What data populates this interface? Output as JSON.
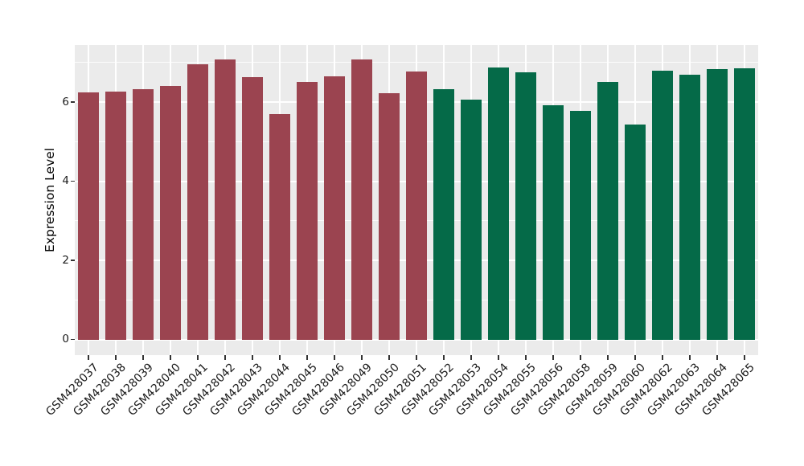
{
  "chart_data": {
    "type": "bar",
    "title": "",
    "xlabel": "",
    "ylabel": "Expression Level",
    "ylim": [
      0,
      7.43
    ],
    "yticks": [
      0,
      2,
      4,
      6
    ],
    "ytick_labels": [
      "0",
      "2",
      "4",
      "6"
    ],
    "minor_gridlines": [
      1,
      3,
      5,
      7
    ],
    "grid": "white major and minor horizontal lines, white vertical line at each category center, on gray panel",
    "legend_position": "none",
    "panel_background": "#EBEBEB",
    "gridline_color": "#FFFFFF",
    "axis_text_color": "#1A1A1A",
    "tick_mark_color": "#333333",
    "group_colors": {
      "maroon": "#9B4450",
      "green": "#056A48"
    },
    "categories": [
      "GSM428037",
      "GSM428038",
      "GSM428039",
      "GSM428040",
      "GSM428041",
      "GSM428042",
      "GSM428043",
      "GSM428044",
      "GSM428045",
      "GSM428046",
      "GSM428049",
      "GSM428050",
      "GSM428051",
      "GSM428052",
      "GSM428053",
      "GSM428054",
      "GSM428055",
      "GSM428056",
      "GSM428058",
      "GSM428059",
      "GSM428060",
      "GSM428062",
      "GSM428063",
      "GSM428064",
      "GSM428065"
    ],
    "values": [
      6.24,
      6.27,
      6.33,
      6.41,
      6.95,
      7.08,
      6.62,
      5.69,
      6.51,
      6.64,
      7.08,
      6.22,
      6.77,
      6.32,
      6.06,
      6.87,
      6.76,
      5.92,
      5.77,
      6.5,
      5.44,
      6.79,
      6.7,
      6.83,
      6.86
    ],
    "bar_groups": [
      "maroon",
      "maroon",
      "maroon",
      "maroon",
      "maroon",
      "maroon",
      "maroon",
      "maroon",
      "maroon",
      "maroon",
      "maroon",
      "maroon",
      "maroon",
      "green",
      "green",
      "green",
      "green",
      "green",
      "green",
      "green",
      "green",
      "green",
      "green",
      "green",
      "green"
    ]
  }
}
